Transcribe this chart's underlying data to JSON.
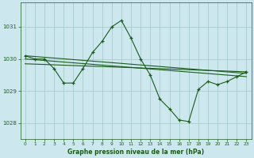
{
  "bg_color": "#cce8ee",
  "grid_color": "#aacccc",
  "line_color": "#1a5c1a",
  "title": "Graphe pression niveau de la mer (hPa)",
  "xlim": [
    -0.5,
    23.5
  ],
  "ylim": [
    1027.5,
    1031.75
  ],
  "yticks": [
    1028,
    1029,
    1030,
    1031
  ],
  "xticks": [
    0,
    1,
    2,
    3,
    4,
    5,
    6,
    7,
    8,
    9,
    10,
    11,
    12,
    13,
    14,
    15,
    16,
    17,
    18,
    19,
    20,
    21,
    22,
    23
  ],
  "series1_x": [
    0,
    1,
    2,
    3,
    4,
    5,
    6,
    7,
    8,
    9,
    10,
    11,
    12,
    13,
    14,
    15,
    16,
    17,
    18,
    19,
    20,
    21,
    22,
    23
  ],
  "series1_y": [
    1030.1,
    1030.0,
    1030.0,
    1029.7,
    1029.25,
    1029.25,
    1029.7,
    1030.2,
    1030.55,
    1031.0,
    1031.2,
    1030.65,
    1030.0,
    1029.5,
    1028.75,
    1028.45,
    1028.1,
    1028.05,
    1029.05,
    1029.3,
    1029.2,
    1029.3,
    1029.45,
    1029.6
  ],
  "series2_x": [
    0,
    23
  ],
  "series2_y": [
    1030.1,
    1029.55
  ],
  "series3_x": [
    0,
    23
  ],
  "series3_y": [
    1030.0,
    1029.45
  ],
  "series4_x": [
    0,
    23
  ],
  "series4_y": [
    1029.85,
    1029.6
  ]
}
